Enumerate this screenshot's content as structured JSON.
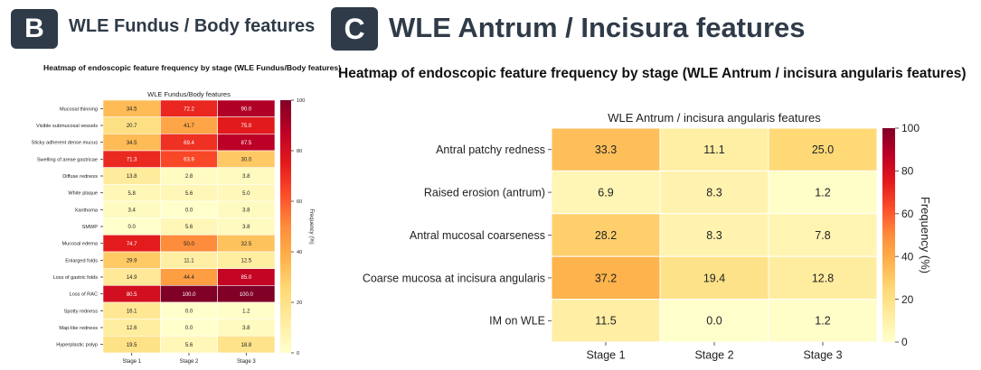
{
  "panels": {
    "b": {
      "letter": "B",
      "title": "WLE Fundus / Body features",
      "heading": "Heatmap of endoscopic feature frequency by stage (WLE Fundus/Body features)"
    },
    "c": {
      "letter": "C",
      "title": "WLE Antrum / Incisura features",
      "heading": "Heatmap of endoscopic feature frequency by stage (WLE Antrum / incisura angularis features)"
    }
  },
  "chart_data": [
    {
      "type": "heatmap",
      "title": "WLE Fundus/Body features",
      "xlabel": "",
      "ylabel": "",
      "colorbar_label": "Frequency (%)",
      "colorbar_ticks": [
        0,
        20,
        40,
        60,
        80,
        100
      ],
      "vmin": 0,
      "vmax": 100,
      "colormap": [
        "#ffffcc",
        "#ffeda0",
        "#fed976",
        "#feb24c",
        "#fd8d3c",
        "#fc4e2a",
        "#e31a1c",
        "#bd0026",
        "#800026"
      ],
      "columns": [
        "Stage 1",
        "Stage 2",
        "Stage 3"
      ],
      "rows": [
        "Mucosal thinning",
        "Visible submucosal vessels",
        "Sticky adherent dense mucus",
        "Swelling of areae gastricae",
        "Diffuse redness",
        "White plaque",
        "Xanthoma",
        "SMWP",
        "Mucosal edema",
        "Enlarged folds",
        "Loss of gastric folds",
        "Loss of RAC",
        "Spotty redness",
        "Map-like redness",
        "Hyperplastic polyp"
      ],
      "values": [
        [
          34.5,
          72.2,
          90.0
        ],
        [
          20.7,
          41.7,
          75.0
        ],
        [
          34.5,
          69.4,
          87.5
        ],
        [
          71.3,
          63.9,
          30.0
        ],
        [
          13.8,
          2.8,
          3.8
        ],
        [
          5.8,
          5.6,
          5.0
        ],
        [
          3.4,
          0.0,
          3.8
        ],
        [
          0.0,
          5.6,
          3.8
        ],
        [
          74.7,
          50.0,
          32.5
        ],
        [
          29.9,
          11.1,
          12.5
        ],
        [
          14.9,
          44.4,
          85.0
        ],
        [
          80.5,
          100.0,
          100.0
        ],
        [
          16.1,
          0.0,
          1.2
        ],
        [
          12.6,
          0.0,
          3.8
        ],
        [
          19.5,
          5.6,
          18.8
        ]
      ]
    },
    {
      "type": "heatmap",
      "title": "WLE Antrum / incisura angularis features",
      "xlabel": "",
      "ylabel": "",
      "colorbar_label": "Frequency (%)",
      "colorbar_ticks": [
        0,
        20,
        40,
        60,
        80,
        100
      ],
      "vmin": 0,
      "vmax": 100,
      "colormap": [
        "#ffffcc",
        "#ffeda0",
        "#fed976",
        "#feb24c",
        "#fd8d3c",
        "#fc4e2a",
        "#e31a1c",
        "#bd0026",
        "#800026"
      ],
      "columns": [
        "Stage 1",
        "Stage 2",
        "Stage 3"
      ],
      "rows": [
        "Antral patchy redness",
        "Raised erosion (antrum)",
        "Antral mucosal coarseness",
        "Coarse mucosa at incisura angularis",
        "IM on WLE"
      ],
      "values": [
        [
          33.3,
          11.1,
          25.0
        ],
        [
          6.9,
          8.3,
          1.2
        ],
        [
          28.2,
          8.3,
          7.8
        ],
        [
          37.2,
          19.4,
          12.8
        ],
        [
          11.5,
          0.0,
          1.2
        ]
      ]
    }
  ]
}
